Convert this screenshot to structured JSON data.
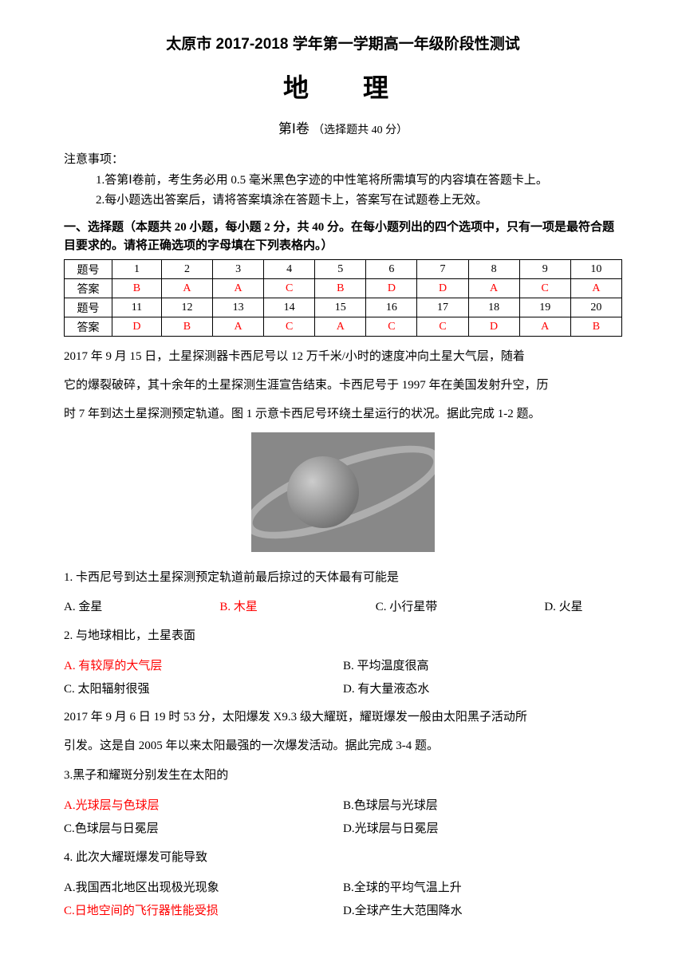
{
  "header": {
    "title": "太原市 2017-2018 学年第一学期高一年级阶段性测试",
    "subject": "地　理",
    "volume": "第Ⅰ卷",
    "volume_sub": "（选择题共 40 分）"
  },
  "notice": {
    "label": "注意事项：",
    "item1": "1.答第Ⅰ卷前，考生务必用 0.5 毫米黑色字迹的中性笔将所需填写的内容填在答题卡上。",
    "item2": "2.每小题选出答案后，请将答案填涂在答题卡上，答案写在试题卷上无效。"
  },
  "section1": {
    "header": "一、选择题（本题共 20 小题，每小题 2 分，共 40 分。在每小题列出的四个选项中，只有一项是最符合题目要求的。请将正确选项的字母填在下列表格内。）"
  },
  "answer_table": {
    "row1_label": "题号",
    "row1": [
      "1",
      "2",
      "3",
      "4",
      "5",
      "6",
      "7",
      "8",
      "9",
      "10"
    ],
    "row2_label": "答案",
    "row2": [
      "B",
      "A",
      "A",
      "C",
      "B",
      "D",
      "D",
      "A",
      "C",
      "A"
    ],
    "row3_label": "题号",
    "row3": [
      "11",
      "12",
      "13",
      "14",
      "15",
      "16",
      "17",
      "18",
      "19",
      "20"
    ],
    "row4_label": "答案",
    "row4": [
      "D",
      "B",
      "A",
      "C",
      "A",
      "C",
      "C",
      "D",
      "A",
      "B"
    ]
  },
  "passage1": {
    "l1": "2017 年 9 月 15 日，土星探测器卡西尼号以 12 万千米/小时的速度冲向土星大气层，随着",
    "l2": "它的爆裂破碎，其十余年的土星探测生涯宣告结束。卡西尼号于 1997 年在美国发射升空，历",
    "l3": "时 7 年到达土星探测预定轨道。图 1 示意卡西尼号环绕土星运行的状况。据此完成 1-2 题。"
  },
  "q1": {
    "text": "1. 卡西尼号到达土星探测预定轨道前最后掠过的天体最有可能是",
    "a": "A. 金星",
    "b": "B. 木星",
    "c": "C. 小行星带",
    "d": "D. 火星"
  },
  "q2": {
    "text": "2. 与地球相比，土星表面",
    "a": "A. 有较厚的大气层",
    "b": "B. 平均温度很高",
    "c": "C. 太阳辐射很强",
    "d": "D. 有大量液态水"
  },
  "passage2": {
    "l1": "2017 年 9 月 6 日 19 时 53 分，太阳爆发 X9.3 级大耀斑，耀斑爆发一般由太阳黑子活动所",
    "l2": "引发。这是自 2005 年以来太阳最强的一次爆发活动。据此完成 3-4 题。"
  },
  "q3": {
    "text": "3.黑子和耀斑分别发生在太阳的",
    "a": "A.光球层与色球层",
    "b": "B.色球层与光球层",
    "c": "C.色球层与日冕层",
    "d": "D.光球层与日冕层"
  },
  "q4": {
    "text": "4. 此次大耀斑爆发可能导致",
    "a": "A.我国西北地区出现极光现象",
    "b": "B.全球的平均气温上升",
    "c": "C.日地空间的飞行器性能受损",
    "d": "D.全球产生大范围降水"
  }
}
